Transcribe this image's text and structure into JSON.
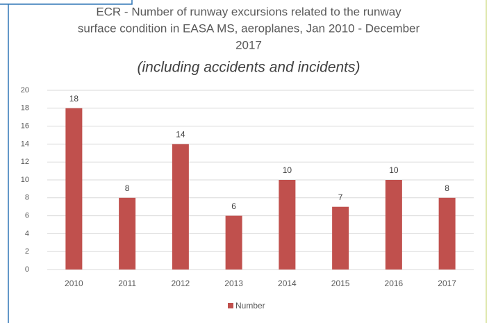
{
  "chart_data": {
    "type": "bar",
    "title": [
      "ECR - Number of runway excursions related to the runway",
      "surface condition in EASA MS, aeroplanes, Jan 2010 - December",
      "2017"
    ],
    "subtitle": "(including accidents and incidents)",
    "categories": [
      "2010",
      "2011",
      "2012",
      "2013",
      "2014",
      "2015",
      "2016",
      "2017"
    ],
    "series": [
      {
        "name": "Number",
        "color": "#c0504d",
        "values": [
          18,
          8,
          14,
          6,
          10,
          7,
          10,
          8
        ]
      }
    ],
    "ylim": [
      0,
      20
    ],
    "yticks": [
      0,
      2,
      4,
      6,
      8,
      10,
      12,
      14,
      16,
      18,
      20
    ],
    "grid": true,
    "legend": "bottom"
  }
}
